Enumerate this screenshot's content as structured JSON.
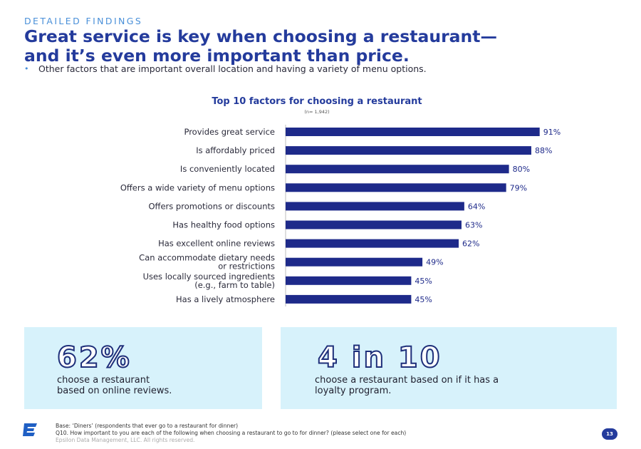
{
  "header": {
    "eyebrow": "DETAILED FINDINGS",
    "headline_line1": "Great service is key when choosing a restaurant—",
    "headline_line2": "and it’s even more important than price.",
    "bullet": "Other factors that are important overall location and having a variety of menu options."
  },
  "chart_data": {
    "type": "bar",
    "orientation": "horizontal",
    "title": "Top 10 factors for choosing a restaurant",
    "subtitle": "(n= 1,942)",
    "categories": [
      [
        "Provides great service"
      ],
      [
        "Is affordably priced"
      ],
      [
        "Is conveniently located"
      ],
      [
        "Offers a wide variety of menu options"
      ],
      [
        "Offers promotions or discounts"
      ],
      [
        "Has healthy food options"
      ],
      [
        "Has excellent online reviews"
      ],
      [
        "Can accommodate dietary needs",
        "or restrictions"
      ],
      [
        "Uses locally sourced ingredients",
        "(e.g., farm to table)"
      ],
      [
        "Has a lively atmosphere"
      ]
    ],
    "values": [
      91,
      88,
      80,
      79,
      64,
      63,
      62,
      49,
      45,
      45
    ],
    "value_suffix": "%",
    "xlim": [
      0,
      100
    ],
    "bar_color": "#1e2a8a",
    "grid": false
  },
  "cards": [
    {
      "stat": "62%",
      "text_line1": "choose a restaurant",
      "text_line2": "based on online reviews."
    },
    {
      "stat": "4 in 10",
      "text_line1": "choose a restaurant based on if it has a",
      "text_line2": "loyalty program."
    }
  ],
  "footer": {
    "base": "Base: ‘Diners’ (respondents that ever go to a restaurant for dinner)",
    "question": "Q10. How important to you are each of the following when choosing a restaurant to go to for dinner? (please select one for each)",
    "copyright": "Epsilon Data Management, LLC. All rights reserved.",
    "page_number": "13"
  },
  "colors": {
    "brand_blue": "#243b9c",
    "accent_blue": "#4a90d9",
    "bar": "#1e2a8a",
    "card_bg": "#d7f2fb"
  }
}
